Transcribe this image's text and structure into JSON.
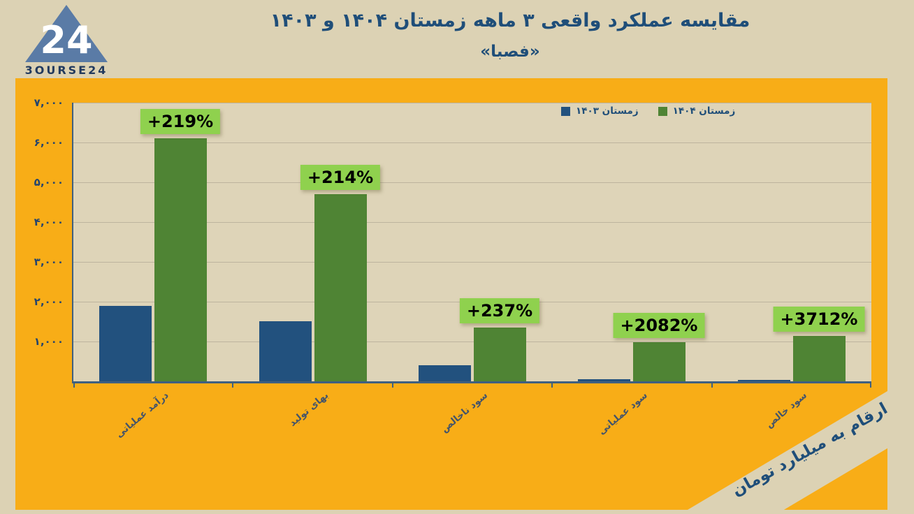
{
  "logo": {
    "text": "3OURSE24",
    "number": "24",
    "triangle_color": "#5a7ba6"
  },
  "header": {
    "title": "مقایسه عملکرد واقعی ۳ ماهه زمستان ۱۴۰۴ و ۱۴۰۳",
    "subtitle": "«فصبا»"
  },
  "legend": {
    "items": [
      {
        "label": "زمستان ۱۴۰۳",
        "color": "#22517e"
      },
      {
        "label": "زمستان ۱۴۰۴",
        "color": "#4f8434"
      }
    ]
  },
  "y_axis": {
    "ticks": [
      "۷,۰۰۰",
      "۶,۰۰۰",
      "۵,۰۰۰",
      "۴,۰۰۰",
      "۳,۰۰۰",
      "۲,۰۰۰",
      "۱,۰۰۰"
    ]
  },
  "footnote": "ارقام به میلیارد تومان",
  "chart_data": {
    "type": "bar",
    "title": "مقایسه عملکرد واقعی ۳ ماهه زمستان ۱۴۰۴ و ۱۴۰۳",
    "subtitle": "«فصبا»",
    "categories": [
      "درآمد عملیاتی",
      "بهای تولید",
      "سود ناخالص",
      "سود عملیاتی",
      "سود خالص"
    ],
    "series": [
      {
        "name": "زمستان ۱۴۰۳",
        "color": "#22517e",
        "values": [
          1900,
          1500,
          400,
          45,
          30
        ]
      },
      {
        "name": "زمستان ۱۴۰۴",
        "color": "#4f8434",
        "values": [
          6100,
          4700,
          1350,
          980,
          1145
        ]
      }
    ],
    "pct_labels": [
      "+219%",
      "+214%",
      "+237%",
      "+2082%",
      "+3712%"
    ],
    "value_unit": "میلیارد تومان",
    "ylim": [
      0,
      7000
    ],
    "grid": true,
    "legend_position": "top-right"
  },
  "colors": {
    "page_background": "#dcd2b4",
    "panel_orange": "#f8ad17",
    "plot_background": "#ded4b8",
    "gridline": "#bdb49e",
    "axis_line": "#3f6080",
    "title_navy": "#1f4e79",
    "pct_label_background": "#8fd14e",
    "category_label": "#44546a"
  }
}
